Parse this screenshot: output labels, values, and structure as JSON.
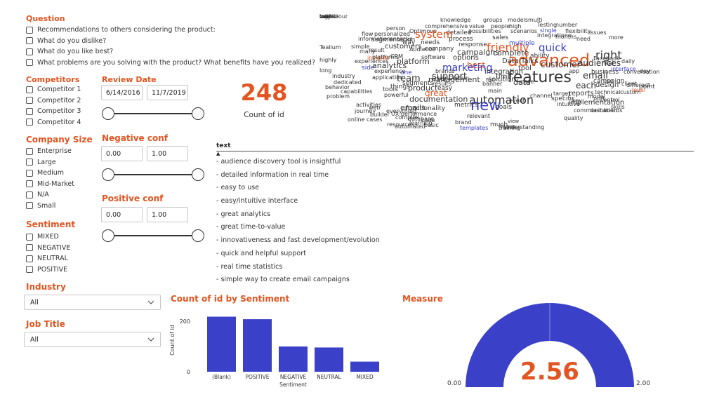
{
  "question": {
    "title": "Question",
    "items": [
      "Recommendations to others considering the product:",
      "What do you dislike?",
      "What do you like best?",
      "What problems are you solving with the product? What benefits have you realized?"
    ]
  },
  "competitors": {
    "title": "Competitors",
    "items": [
      "Competitor 1",
      "Competitor 2",
      "Competitor 3",
      "Competitor 4"
    ]
  },
  "review_date": {
    "title": "Review Date",
    "start": "6/14/2016",
    "end": "11/7/2019"
  },
  "company_size": {
    "title": "Company Size",
    "items": [
      "Enterprise",
      "Large",
      "Medium",
      "Mid-Market",
      "N/A",
      "Small"
    ]
  },
  "negative_conf": {
    "title": "Negative conf",
    "min": "0.00",
    "max": "1.00"
  },
  "positive_conf": {
    "title": "Positive conf",
    "min": "0.00",
    "max": "1.00"
  },
  "sentiment": {
    "title": "Sentiment",
    "items": [
      "MIXED",
      "NEGATIVE",
      "NEUTRAL",
      "POSITIVE"
    ]
  },
  "industry": {
    "title": "Industry",
    "value": "All"
  },
  "job_title": {
    "title": "Job Title",
    "value": "All"
  },
  "kpi": {
    "value": "248",
    "label": "Count of id"
  },
  "text_table": {
    "header": "text",
    "rows": [
      "- audience discovery tool is insightful",
      "- detailed information in real time",
      "- easy to use",
      "- easy/intuitive interface",
      "- great analytics",
      "- great time-to-value",
      "- innovativeness and fast development/evolution",
      "- quick and helpful support",
      "- real time statistics",
      "- simple way to create email campaigns"
    ]
  },
  "bar_chart": {
    "title": "Count of id by Sentiment",
    "chart_data": {
      "type": "bar",
      "categories": [
        "(Blank)",
        "POSITIVE",
        "NEGATIVE",
        "NEUTRAL",
        "MIXED"
      ],
      "values": [
        218,
        208,
        100,
        96,
        40
      ],
      "xlabel": "Sentiment",
      "ylabel": "Count of id",
      "yticks": [
        "200",
        "0"
      ],
      "ylim": [
        0,
        250
      ],
      "color": "#3a40c8"
    }
  },
  "gauge": {
    "title": "Measure",
    "value": "2.56",
    "min": "0.00",
    "max": "2.00",
    "color": "#3a40c8"
  },
  "word_cloud": {
    "words": [
      "knowledge",
      "groups",
      "models",
      "multi",
      "comprehensive",
      "value",
      "people",
      "high",
      "Testing",
      "number",
      "person",
      "Optimove",
      "detailed",
      "possibilities",
      "scenarios",
      "single",
      "flexibility",
      "issues",
      "flow",
      "personalized",
      "system",
      "process",
      "sales",
      "integrations",
      "months",
      "need",
      "more",
      "information",
      "segmentation",
      "analysis",
      "way",
      "needs",
      "response",
      "friendly",
      "multiple",
      "quick",
      "Tealium",
      "simple",
      "customers",
      "company",
      "campaigns",
      "complete",
      "ability",
      "right",
      "advanced",
      "many",
      "platform",
      "options",
      "best",
      "marketing",
      "audiences",
      "features",
      "great",
      "automation",
      "new",
      "time",
      "data",
      "Data Talks",
      "tool",
      "customer",
      "email",
      "campaign",
      "analytics",
      "team",
      "user",
      "solution",
      "insights",
      "one",
      "experience",
      "support",
      "integration",
      "documentation",
      "capabilities",
      "powerful",
      "tools",
      "things",
      "easy",
      "product",
      "management",
      "segments",
      "each",
      "business",
      "interface",
      "different",
      "level",
      "use",
      "design",
      "dashboards",
      "communication",
      "implementation",
      "reports",
      "target",
      "quality",
      "intuitive",
      "specific",
      "technical",
      "relevant",
      "brand",
      "goals",
      "view",
      "much",
      "those",
      "training",
      "understanding",
      "templates",
      "basic",
      "code",
      "database",
      "everything",
      "resources",
      "automated",
      "learning",
      "metrics",
      "emails",
      "functionality",
      "builder",
      "UX performance",
      "cases",
      "complex",
      "web",
      "journey",
      "online",
      "activities",
      "behavior",
      "problem",
      "industry",
      "dedicated",
      "long",
      "highly",
      "experiences",
      "side",
      "application",
      "platforms",
      "result",
      "CRM",
      "Audience",
      "software",
      "brands",
      "results",
      "Certain",
      "full",
      "banner",
      "case",
      "main",
      "event",
      "channel",
      "key",
      "port",
      "custom",
      "point",
      "client",
      "real",
      "conversation",
      "day",
      "daily",
      "app",
      "Facebook",
      "model",
      "control",
      "skills",
      "beahviour",
      "mobile",
      "log",
      "both",
      "ways",
      "robust",
      "major"
    ]
  }
}
